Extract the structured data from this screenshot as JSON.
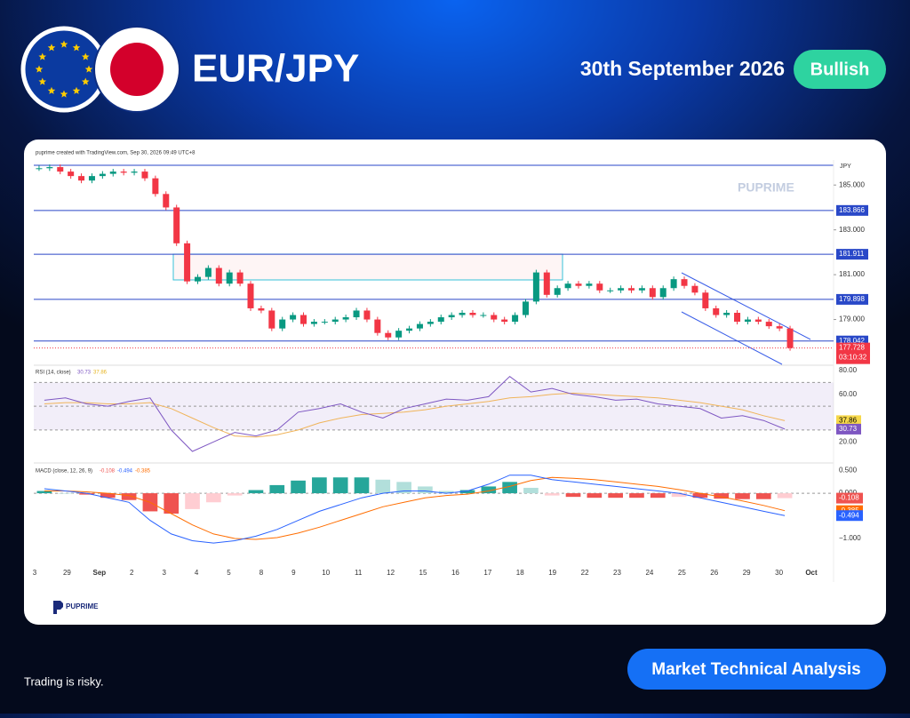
{
  "header": {
    "pair": "EUR/JPY",
    "date": "30th September 2026",
    "bias": "Bullish"
  },
  "footer": {
    "disclaimer": "Trading is risky.",
    "button": "Market Technical Analysis",
    "logo": "PUPRIME"
  },
  "chart_data": {
    "type": "candlestick",
    "credit": "puprime created with TradingView.com, Sep 30, 2026 09:49 UTC+8",
    "currency": "JPY",
    "watermark": "PUPRIME",
    "ylim": [
      177.0,
      186.0
    ],
    "yticks": [
      {
        "value": 185,
        "label": "185.000"
      },
      {
        "value": 183,
        "label": "183.000"
      },
      {
        "value": 181,
        "label": "181.000"
      },
      {
        "value": 179,
        "label": "179.000"
      }
    ],
    "levels": [
      183.866,
      181.911,
      179.898,
      178.042
    ],
    "close": [
      185.75,
      185.8,
      185.6,
      185.4,
      185.2,
      185.4,
      185.5,
      185.6,
      185.55,
      185.6,
      185.3,
      184.6,
      184.0,
      182.4,
      180.7,
      180.9,
      181.3,
      180.6,
      181.1,
      180.6,
      179.5,
      179.4,
      178.6,
      179.0,
      179.2,
      178.8,
      178.9,
      178.9,
      179.0,
      179.1,
      179.4,
      179.0,
      178.4,
      178.2,
      178.5,
      178.6,
      178.8,
      178.9,
      179.1,
      179.2,
      179.3,
      179.2,
      179.2,
      179.0,
      178.9,
      179.2,
      179.8,
      181.1,
      180.1,
      180.4,
      180.6,
      180.5,
      180.6,
      180.3,
      180.3,
      180.4,
      180.3,
      180.4,
      180.0,
      180.4,
      180.8,
      180.5,
      180.2,
      179.5,
      179.2,
      179.3,
      178.9,
      179.0,
      178.9,
      178.7,
      178.6,
      177.728
    ],
    "countdown": "03:10:32",
    "x_labels": [
      "3",
      "29",
      "Sep",
      "2",
      "3",
      "4",
      "5",
      "8",
      "9",
      "10",
      "11",
      "12",
      "15",
      "16",
      "17",
      "18",
      "19",
      "22",
      "23",
      "24",
      "25",
      "26",
      "29",
      "30",
      "Oct"
    ],
    "rsi": {
      "title": "RSI (14, close)",
      "ylim": [
        3,
        83
      ],
      "yticks": [
        {
          "value": 80,
          "label": "80.00"
        },
        {
          "value": 60,
          "label": "60.00"
        },
        {
          "value": 20,
          "label": "20.00"
        }
      ],
      "values": [
        55,
        57,
        52,
        50,
        54,
        57,
        30,
        12,
        20,
        28,
        25,
        30,
        45,
        48,
        52,
        45,
        40,
        48,
        52,
        56,
        55,
        58,
        75,
        62,
        65,
        60,
        58,
        55,
        56,
        52,
        50,
        48,
        40,
        42,
        38,
        30.73
      ],
      "ma": [
        52,
        53,
        53,
        52,
        52,
        53,
        48,
        40,
        32,
        25,
        24,
        26,
        30,
        36,
        40,
        43,
        44,
        45,
        47,
        50,
        52,
        54,
        57,
        58,
        60,
        61,
        60,
        59,
        58,
        57,
        55,
        53,
        50,
        47,
        42,
        37.86
      ]
    },
    "macd": {
      "title": "MACD (close, 12, 26, 9)",
      "ylim": [
        -1.57,
        0.63
      ],
      "yticks": [
        {
          "value": 0.5,
          "label": "0.500"
        },
        {
          "value": 0,
          "label": "0.000"
        },
        {
          "value": -1,
          "label": "−1.000"
        }
      ],
      "macd": [
        0.1,
        0.05,
        0.0,
        -0.1,
        -0.2,
        -0.6,
        -0.9,
        -1.05,
        -1.1,
        -1.05,
        -0.95,
        -0.8,
        -0.6,
        -0.4,
        -0.25,
        -0.1,
        0.0,
        0.05,
        0.05,
        0.0,
        0.05,
        0.2,
        0.4,
        0.4,
        0.3,
        0.25,
        0.2,
        0.15,
        0.1,
        0.05,
        0.0,
        -0.1,
        -0.2,
        -0.3,
        -0.4,
        -0.494
      ],
      "signal": [
        0.05,
        0.05,
        0.03,
        0.0,
        -0.05,
        -0.2,
        -0.45,
        -0.7,
        -0.9,
        -1.0,
        -1.02,
        -0.98,
        -0.88,
        -0.75,
        -0.6,
        -0.45,
        -0.3,
        -0.2,
        -0.1,
        -0.05,
        -0.02,
        0.05,
        0.15,
        0.28,
        0.35,
        0.33,
        0.3,
        0.25,
        0.2,
        0.15,
        0.08,
        0.0,
        -0.08,
        -0.17,
        -0.27,
        -0.385
      ],
      "histogram": [
        0.05,
        0,
        -0.03,
        -0.1,
        -0.15,
        -0.4,
        -0.45,
        -0.35,
        -0.2,
        -0.05,
        0.07,
        0.18,
        0.28,
        0.35,
        0.35,
        0.35,
        0.3,
        0.25,
        0.15,
        0.05,
        0.07,
        0.15,
        0.25,
        0.12,
        -0.05,
        -0.08,
        -0.1,
        -0.1,
        -0.1,
        -0.1,
        -0.08,
        -0.1,
        -0.12,
        -0.13,
        -0.13,
        -0.108
      ]
    }
  }
}
